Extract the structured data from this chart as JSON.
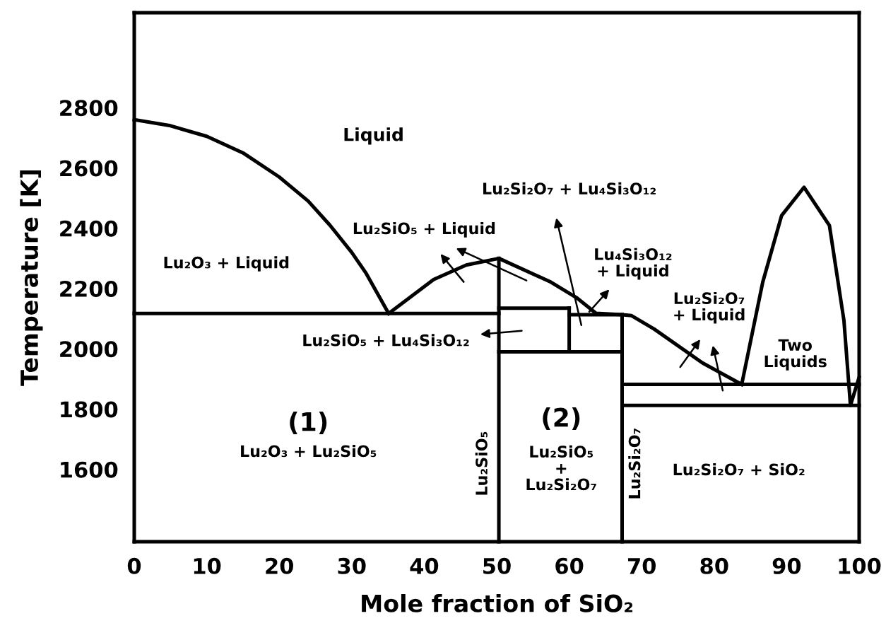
{
  "chart_data": {
    "type": "line",
    "xlabel": "Mole fraction of SiO₂",
    "ylabel": "Temperature [K]",
    "xlim": [
      0,
      100
    ],
    "ylim": [
      1360,
      3115
    ],
    "xticks": [
      0,
      10,
      20,
      30,
      40,
      50,
      60,
      70,
      80,
      90,
      100
    ],
    "yticks": [
      1600,
      1800,
      2000,
      2200,
      2400,
      2600,
      2800
    ],
    "grid": false,
    "legend": false,
    "marker": "none",
    "line_style": "solid",
    "series": [
      {
        "color": "#000000",
        "x": [
          0,
          5,
          10,
          15,
          20,
          24,
          27,
          30,
          32,
          35.1
        ],
        "values": [
          2760,
          2740,
          2705,
          2650,
          2570,
          2490,
          2410,
          2320,
          2250,
          2117
        ]
      },
      {
        "color": "#000000",
        "x": [
          0,
          50.3
        ],
        "values": [
          2117,
          2117
        ]
      },
      {
        "color": "#000000",
        "x": [
          35.1,
          41.3,
          45.8,
          50.3,
          57.5,
          61,
          63.7,
          67.3,
          68.6,
          71.7,
          78.4,
          83.8
        ],
        "values": [
          2117,
          2230,
          2278,
          2300,
          2221,
          2170,
          2118,
          2113,
          2110,
          2066,
          1953,
          1882
        ]
      },
      {
        "color": "#000000",
        "x": [
          50.3,
          60
        ],
        "values": [
          2135,
          2135
        ]
      },
      {
        "color": "#000000",
        "x": [
          60,
          67.3
        ],
        "values": [
          2113,
          2113
        ]
      },
      {
        "color": "#000000",
        "x": [
          60,
          60
        ],
        "values": [
          2135,
          1990
        ]
      },
      {
        "color": "#000000",
        "x": [
          50.3,
          67.3
        ],
        "values": [
          1990,
          1990
        ]
      },
      {
        "color": "#000000",
        "x": [
          50.3,
          50.3
        ],
        "values": [
          1360,
          2300
        ]
      },
      {
        "color": "#000000",
        "x": [
          67.3,
          67.3
        ],
        "values": [
          1360,
          2113
        ]
      },
      {
        "color": "#000000",
        "x": [
          67.3,
          100
        ],
        "values": [
          1882,
          1882
        ]
      },
      {
        "color": "#000000",
        "x": [
          67.3,
          100
        ],
        "values": [
          1812,
          1812
        ]
      },
      {
        "color": "#000000",
        "x": [
          83.8,
          86.7,
          89.3,
          92.4,
          95.9,
          97.9,
          98.8,
          100
        ],
        "values": [
          1882,
          2221,
          2442,
          2536,
          2409,
          2094,
          1812,
          1906
        ]
      }
    ],
    "annotations": [
      "Liquid",
      "Lu₂O₃ + Liquid",
      "Lu₂SiO₅ + Liquid",
      "Lu₂Si₂O₇ + Lu₄Si₃O₁₂",
      "Lu₄Si₃O₁₂\n+ Liquid",
      "Lu₂SiO₅ + Lu₄Si₃O₁₂",
      "Lu₂Si₂O₇\n+ Liquid",
      "Two\nLiquids",
      "(1)",
      "Lu₂O₃ + Lu₂SiO₅",
      "Lu₂SiO₅",
      "(2)",
      "Lu₂SiO₅\n+\nLu₂Si₂O₇",
      "Lu₂Si₂O₇",
      "Lu₂Si₂O₇ + SiO₂"
    ]
  }
}
